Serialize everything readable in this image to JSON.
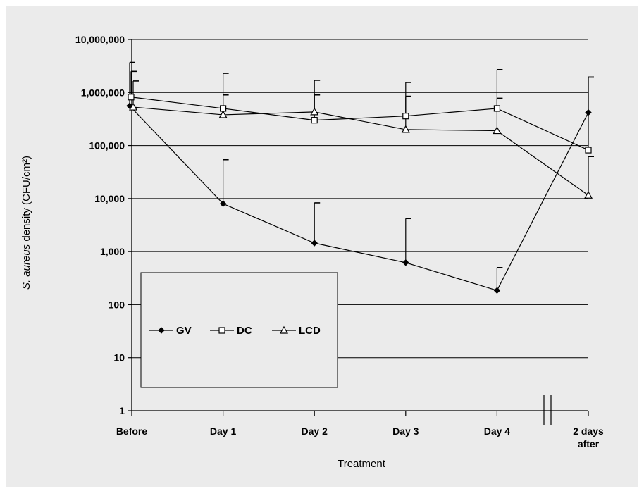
{
  "chart_data": {
    "type": "line",
    "xlabel": "Treatment",
    "ylabel_italic": "S. aureus",
    "ylabel_rest": " density (CFU/cm²)",
    "scale": "log",
    "ylim": [
      1,
      10000000
    ],
    "grid": "horizontal",
    "legend_placement": "lower-left",
    "axis_break": "between Day 4 and 2 days after",
    "categories": [
      {
        "line1": "Before",
        "line2": ""
      },
      {
        "line1": "Day 1",
        "line2": ""
      },
      {
        "line1": "Day 2",
        "line2": ""
      },
      {
        "line1": "Day 3",
        "line2": ""
      },
      {
        "line1": "Day 4",
        "line2": ""
      },
      {
        "line1": "2 days",
        "line2": "after"
      }
    ],
    "y_ticks": [
      {
        "value": 1,
        "label": "1"
      },
      {
        "value": 10,
        "label": "10"
      },
      {
        "value": 100,
        "label": "100"
      },
      {
        "value": 1000,
        "label": "1,000"
      },
      {
        "value": 10000,
        "label": "10,000"
      },
      {
        "value": 100000,
        "label": "100,000"
      },
      {
        "value": 1000000,
        "label": "1,000,000"
      },
      {
        "value": 10000000,
        "label": "10,000,000"
      }
    ],
    "series": [
      {
        "name": "GV",
        "marker": "diamond",
        "values": [
          560000,
          8000,
          1450,
          620,
          185,
          420000
        ],
        "error_upper": [
          3700000,
          54000,
          8300,
          4200,
          500,
          1950000
        ]
      },
      {
        "name": "DC",
        "marker": "square",
        "values": [
          820000,
          500000,
          300000,
          360000,
          500000,
          82000
        ],
        "error_upper": [
          2500000,
          2300000,
          1700000,
          1550000,
          2700000,
          1950000
        ]
      },
      {
        "name": "LCD",
        "marker": "triangle",
        "values": [
          530000,
          380000,
          430000,
          200000,
          190000,
          11500
        ],
        "error_upper": [
          1650000,
          900000,
          900000,
          850000,
          780000,
          62000
        ]
      }
    ]
  }
}
